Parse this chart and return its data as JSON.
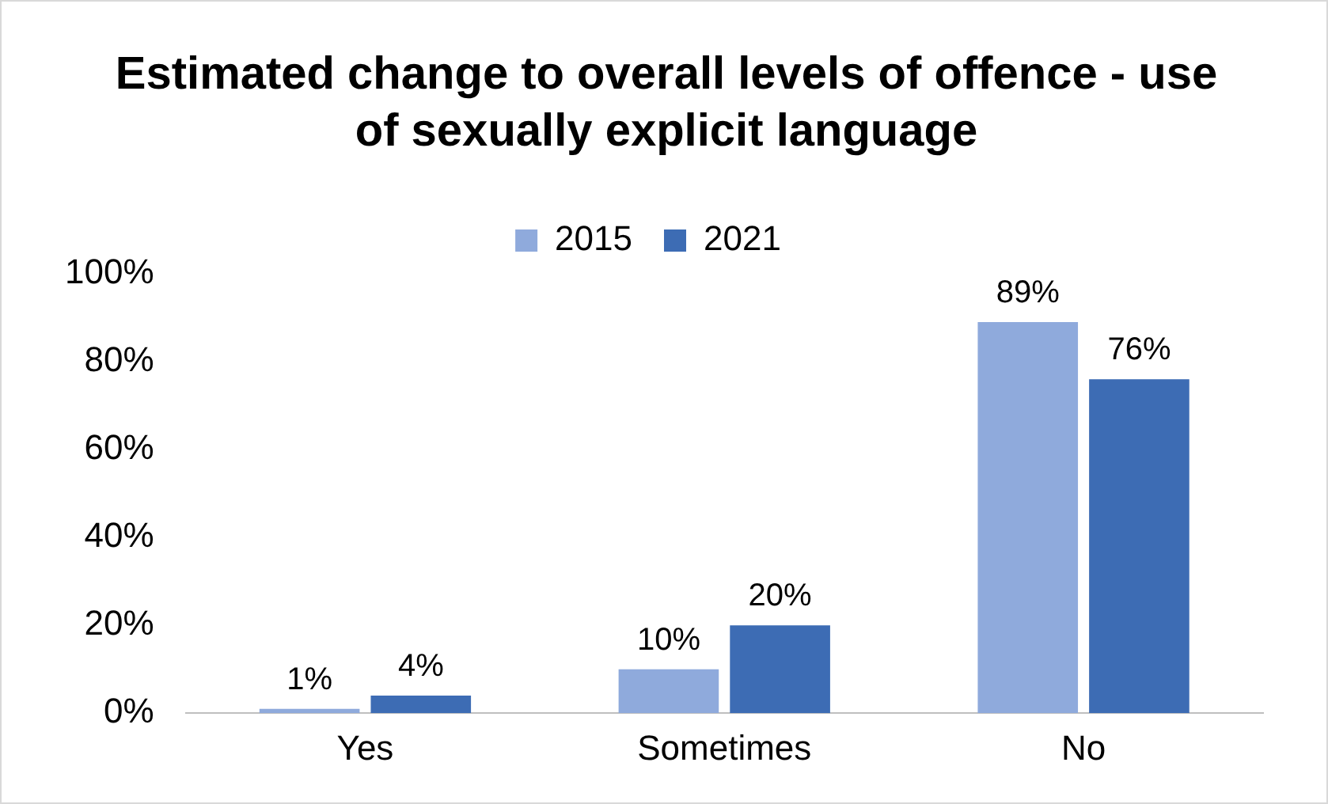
{
  "chart_data": {
    "type": "bar",
    "title": "Estimated change to overall levels of offence - use of sexually explicit language",
    "categories": [
      "Yes",
      "Sometimes",
      "No"
    ],
    "series": [
      {
        "name": "2015",
        "color": "#8faadc",
        "values": [
          1,
          10,
          89
        ],
        "value_labels": [
          "1%",
          "10%",
          "89%"
        ]
      },
      {
        "name": "2021",
        "color": "#3d6cb4",
        "values": [
          4,
          20,
          76
        ],
        "value_labels": [
          "4%",
          "20%",
          "76%"
        ]
      }
    ],
    "ylim": [
      0,
      100
    ],
    "yticks": [
      {
        "value": 0,
        "label": "0%"
      },
      {
        "value": 20,
        "label": "20%"
      },
      {
        "value": 40,
        "label": "40%"
      },
      {
        "value": 60,
        "label": "60%"
      },
      {
        "value": 80,
        "label": "80%"
      },
      {
        "value": 100,
        "label": "100%"
      }
    ],
    "grid": false,
    "legend": "top"
  }
}
